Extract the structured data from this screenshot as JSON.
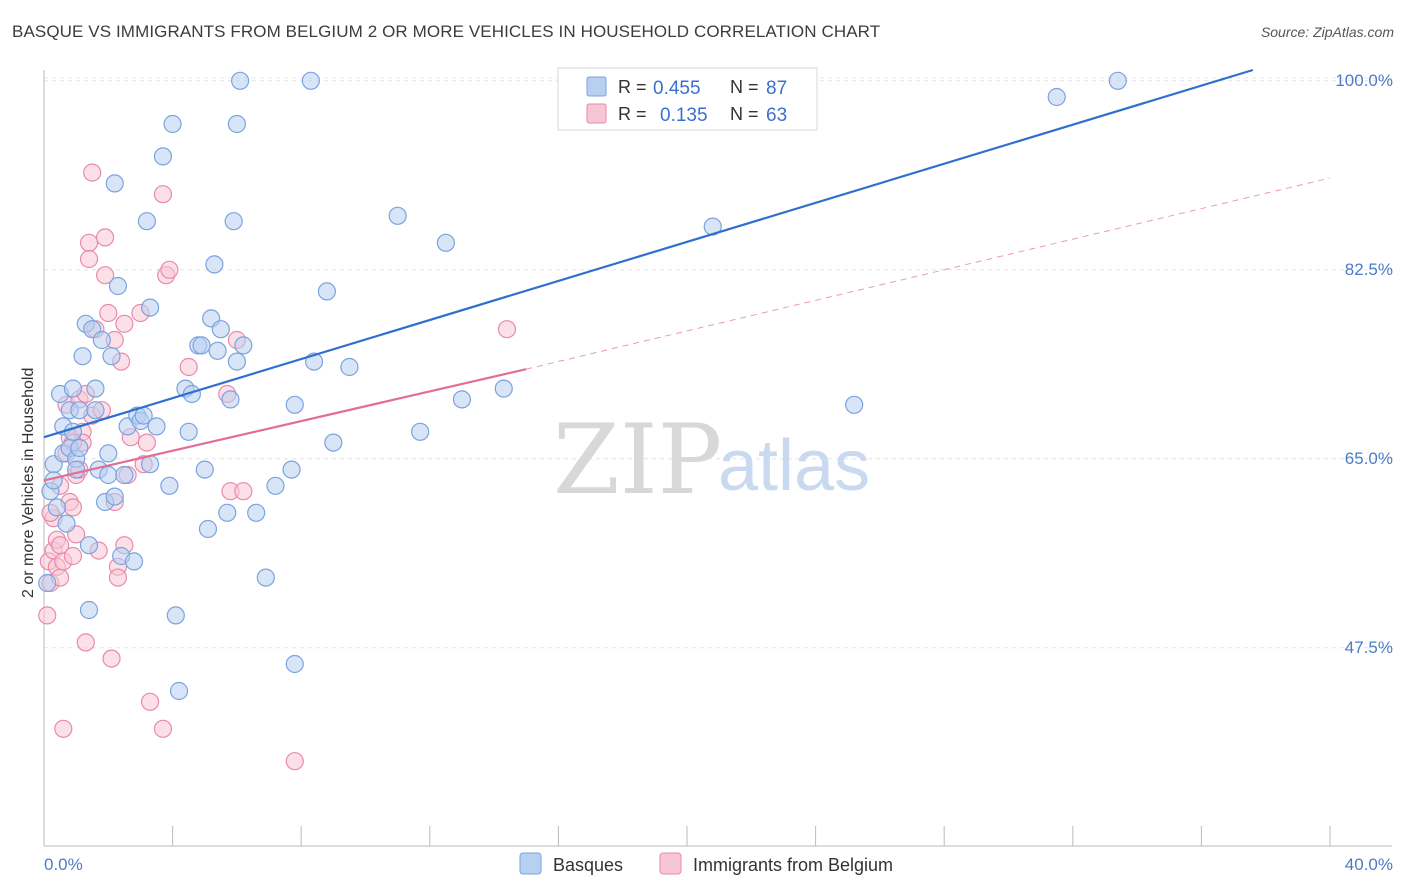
{
  "title": "BASQUE VS IMMIGRANTS FROM BELGIUM 2 OR MORE VEHICLES IN HOUSEHOLD CORRELATION CHART",
  "source": "Source: ZipAtlas.com",
  "watermark": {
    "zip": "ZIP",
    "atlas": "atlas"
  },
  "colors": {
    "blue_fill": "#b8d0f0",
    "blue_stroke": "#7aa3e0",
    "blue_line": "#2f6fcf",
    "pink_fill": "#f7c6d6",
    "pink_stroke": "#e98aab",
    "pink_line": "#e06f98",
    "grid": "#e4e4e4",
    "axis": "#bbbbbb",
    "tick_text": "#4a7cc9"
  },
  "stats": {
    "row1": {
      "r_label": "R =",
      "r_value": "0.455",
      "n_label": "N =",
      "n_value": "87"
    },
    "row2": {
      "r_label": "R =",
      "r_value": "0.135",
      "n_label": "N =",
      "n_value": "63"
    }
  },
  "chart_data": {
    "type": "scatter",
    "title": "BASQUE VS IMMIGRANTS FROM BELGIUM 2 OR MORE VEHICLES IN HOUSEHOLD CORRELATION CHART",
    "xlabel": "",
    "ylabel": "2 or more Vehicles in Household",
    "xlim": [
      0,
      40
    ],
    "ylim": [
      31,
      101
    ],
    "x_ticks": [
      0,
      4,
      8,
      12,
      16,
      20,
      24,
      28,
      32,
      36,
      40
    ],
    "x_tick_labels": {
      "min": "0.0%",
      "max": "40.0%"
    },
    "y_ticks": [
      47.5,
      65.0,
      82.5,
      100.0
    ],
    "y_tick_labels": [
      "47.5%",
      "65.0%",
      "82.5%",
      "100.0%"
    ],
    "legend_position": "top-center",
    "series": [
      {
        "name": "Basques",
        "r": 0.455,
        "n": 87,
        "trend": {
          "x0": 0,
          "y0": 67.0,
          "x1": 37.6,
          "y1": 101.0,
          "style": "solid"
        },
        "points": [
          [
            0.2,
            62.0
          ],
          [
            0.3,
            64.5
          ],
          [
            0.3,
            63.0
          ],
          [
            0.5,
            71.0
          ],
          [
            0.6,
            68.0
          ],
          [
            0.6,
            65.5
          ],
          [
            0.7,
            59.0
          ],
          [
            0.8,
            66.0
          ],
          [
            0.8,
            69.5
          ],
          [
            0.9,
            67.5
          ],
          [
            0.9,
            71.5
          ],
          [
            1.0,
            65.0
          ],
          [
            1.0,
            64.0
          ],
          [
            1.1,
            69.5
          ],
          [
            1.2,
            74.5
          ],
          [
            1.3,
            77.5
          ],
          [
            1.4,
            57.0
          ],
          [
            1.4,
            51.0
          ],
          [
            1.5,
            77.0
          ],
          [
            1.6,
            71.5
          ],
          [
            1.6,
            69.5
          ],
          [
            1.7,
            64.0
          ],
          [
            1.8,
            76.0
          ],
          [
            1.9,
            61.0
          ],
          [
            2.0,
            63.5
          ],
          [
            2.0,
            65.5
          ],
          [
            2.1,
            74.5
          ],
          [
            2.2,
            90.5
          ],
          [
            2.2,
            61.5
          ],
          [
            2.3,
            81.0
          ],
          [
            2.4,
            56.0
          ],
          [
            2.5,
            63.5
          ],
          [
            2.6,
            68.0
          ],
          [
            2.8,
            55.5
          ],
          [
            2.9,
            69.0
          ],
          [
            3.0,
            68.5
          ],
          [
            3.1,
            69.0
          ],
          [
            3.2,
            87.0
          ],
          [
            3.3,
            64.5
          ],
          [
            3.3,
            79.0
          ],
          [
            3.7,
            93.0
          ],
          [
            3.9,
            62.5
          ],
          [
            4.0,
            96.0
          ],
          [
            4.1,
            50.5
          ],
          [
            4.2,
            43.5
          ],
          [
            4.4,
            71.5
          ],
          [
            4.5,
            67.5
          ],
          [
            4.6,
            71.0
          ],
          [
            4.8,
            75.5
          ],
          [
            4.9,
            75.5
          ],
          [
            5.0,
            64.0
          ],
          [
            5.1,
            58.5
          ],
          [
            5.2,
            78.0
          ],
          [
            5.3,
            83.0
          ],
          [
            5.4,
            75.0
          ],
          [
            5.5,
            77.0
          ],
          [
            5.7,
            60.0
          ],
          [
            5.8,
            70.5
          ],
          [
            5.9,
            87.0
          ],
          [
            6.0,
            74.0
          ],
          [
            6.0,
            96.0
          ],
          [
            6.1,
            100.0
          ],
          [
            6.2,
            75.5
          ],
          [
            6.6,
            60.0
          ],
          [
            6.9,
            54.0
          ],
          [
            7.7,
            64.0
          ],
          [
            7.8,
            70.0
          ],
          [
            7.8,
            46.0
          ],
          [
            8.3,
            100.0
          ],
          [
            8.4,
            74.0
          ],
          [
            8.8,
            80.5
          ],
          [
            9.5,
            73.5
          ],
          [
            11.0,
            87.5
          ],
          [
            11.7,
            67.5
          ],
          [
            12.5,
            85.0
          ],
          [
            13.0,
            70.5
          ],
          [
            14.3,
            71.5
          ],
          [
            20.8,
            86.5
          ],
          [
            25.2,
            70.0
          ],
          [
            31.5,
            98.5
          ],
          [
            33.4,
            100.0
          ],
          [
            0.1,
            53.5
          ],
          [
            0.4,
            60.5
          ],
          [
            1.1,
            66.0
          ],
          [
            3.5,
            68.0
          ],
          [
            7.2,
            62.5
          ],
          [
            9.0,
            66.5
          ]
        ]
      },
      {
        "name": "Immigrants from Belgium",
        "r": 0.135,
        "n": 63,
        "trend": {
          "x0": 0,
          "y0": 63.0,
          "x1": 15.0,
          "y1": 73.3,
          "style": "solid"
        },
        "trend_dashed": {
          "x0": 15.0,
          "y0": 73.3,
          "x1": 40.0,
          "y1": 91.0,
          "style": "dashed"
        },
        "points": [
          [
            0.1,
            50.5
          ],
          [
            0.15,
            55.5
          ],
          [
            0.2,
            53.5
          ],
          [
            0.3,
            56.5
          ],
          [
            0.3,
            59.5
          ],
          [
            0.4,
            55.0
          ],
          [
            0.4,
            57.5
          ],
          [
            0.5,
            54.0
          ],
          [
            0.5,
            62.5
          ],
          [
            0.6,
            40.0
          ],
          [
            0.6,
            55.5
          ],
          [
            0.7,
            65.5
          ],
          [
            0.7,
            70.0
          ],
          [
            0.8,
            61.0
          ],
          [
            0.8,
            67.0
          ],
          [
            0.9,
            60.5
          ],
          [
            0.9,
            56.0
          ],
          [
            1.0,
            58.0
          ],
          [
            1.0,
            63.5
          ],
          [
            1.1,
            70.5
          ],
          [
            1.2,
            67.5
          ],
          [
            1.2,
            66.5
          ],
          [
            1.3,
            71.0
          ],
          [
            1.3,
            48.0
          ],
          [
            1.4,
            85.0
          ],
          [
            1.4,
            83.5
          ],
          [
            1.5,
            91.5
          ],
          [
            1.5,
            69.0
          ],
          [
            1.6,
            77.0
          ],
          [
            1.7,
            56.5
          ],
          [
            1.8,
            69.5
          ],
          [
            1.9,
            82.0
          ],
          [
            1.9,
            85.5
          ],
          [
            2.0,
            78.5
          ],
          [
            2.1,
            46.5
          ],
          [
            2.2,
            76.0
          ],
          [
            2.3,
            55.0
          ],
          [
            2.3,
            54.0
          ],
          [
            2.4,
            74.0
          ],
          [
            2.5,
            57.0
          ],
          [
            2.5,
            77.5
          ],
          [
            2.6,
            63.5
          ],
          [
            2.7,
            67.0
          ],
          [
            3.0,
            78.5
          ],
          [
            3.1,
            64.5
          ],
          [
            3.2,
            66.5
          ],
          [
            3.3,
            42.5
          ],
          [
            3.7,
            40.0
          ],
          [
            3.7,
            89.5
          ],
          [
            3.8,
            82.0
          ],
          [
            3.9,
            82.5
          ],
          [
            4.5,
            73.5
          ],
          [
            5.7,
            71.0
          ],
          [
            5.8,
            62.0
          ],
          [
            6.0,
            76.0
          ],
          [
            6.2,
            62.0
          ],
          [
            7.8,
            37.0
          ],
          [
            14.4,
            77.0
          ],
          [
            0.2,
            60.0
          ],
          [
            0.5,
            57.0
          ],
          [
            0.9,
            66.5
          ],
          [
            1.1,
            64.0
          ],
          [
            2.2,
            61.0
          ]
        ]
      }
    ]
  },
  "legend": {
    "items": [
      {
        "label": "Basques"
      },
      {
        "label": "Immigrants from Belgium"
      }
    ]
  }
}
